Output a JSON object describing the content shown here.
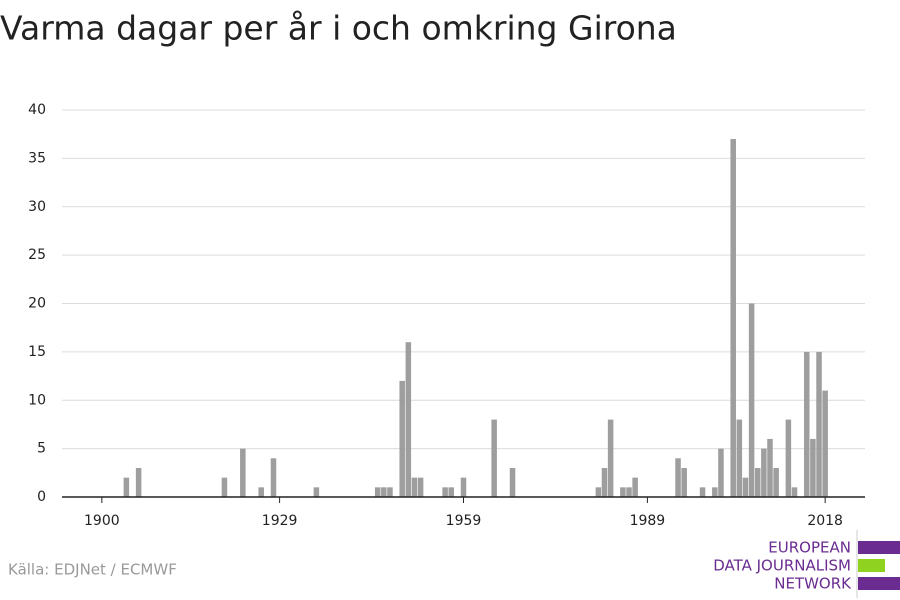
{
  "chart_data": {
    "type": "bar",
    "title": "Varma dagar per år i och omkring Girona",
    "x": [
      1904,
      1906,
      1920,
      1923,
      1926,
      1928,
      1935,
      1945,
      1946,
      1947,
      1949,
      1950,
      1951,
      1952,
      1956,
      1957,
      1959,
      1964,
      1967,
      1981,
      1982,
      1983,
      1985,
      1986,
      1987,
      1994,
      1995,
      1998,
      2000,
      2001,
      2003,
      2004,
      2005,
      2006,
      2007,
      2008,
      2009,
      2010,
      2012,
      2013,
      2015,
      2016,
      2017,
      2018
    ],
    "values": [
      2,
      3,
      2,
      5,
      1,
      4,
      1,
      1,
      1,
      1,
      12,
      16,
      2,
      2,
      1,
      1,
      2,
      8,
      3,
      1,
      3,
      8,
      1,
      1,
      2,
      4,
      3,
      1,
      1,
      5,
      37,
      8,
      2,
      20,
      3,
      5,
      6,
      3,
      8,
      1,
      15,
      6,
      15,
      11
    ],
    "color": "#9e9e9e",
    "xlim": [
      1893.5,
      2024.5
    ],
    "xticks": [
      1900,
      1929,
      1959,
      1989,
      2018
    ],
    "ylim": [
      0,
      40
    ],
    "yticks": [
      0,
      5,
      10,
      15,
      20,
      25,
      30,
      35,
      40
    ],
    "grid": true,
    "source": "Källa: EDJNet / ECMWF",
    "logo": [
      "EUROPEAN",
      "DATA JOURNALISM",
      "NETWORK"
    ]
  }
}
